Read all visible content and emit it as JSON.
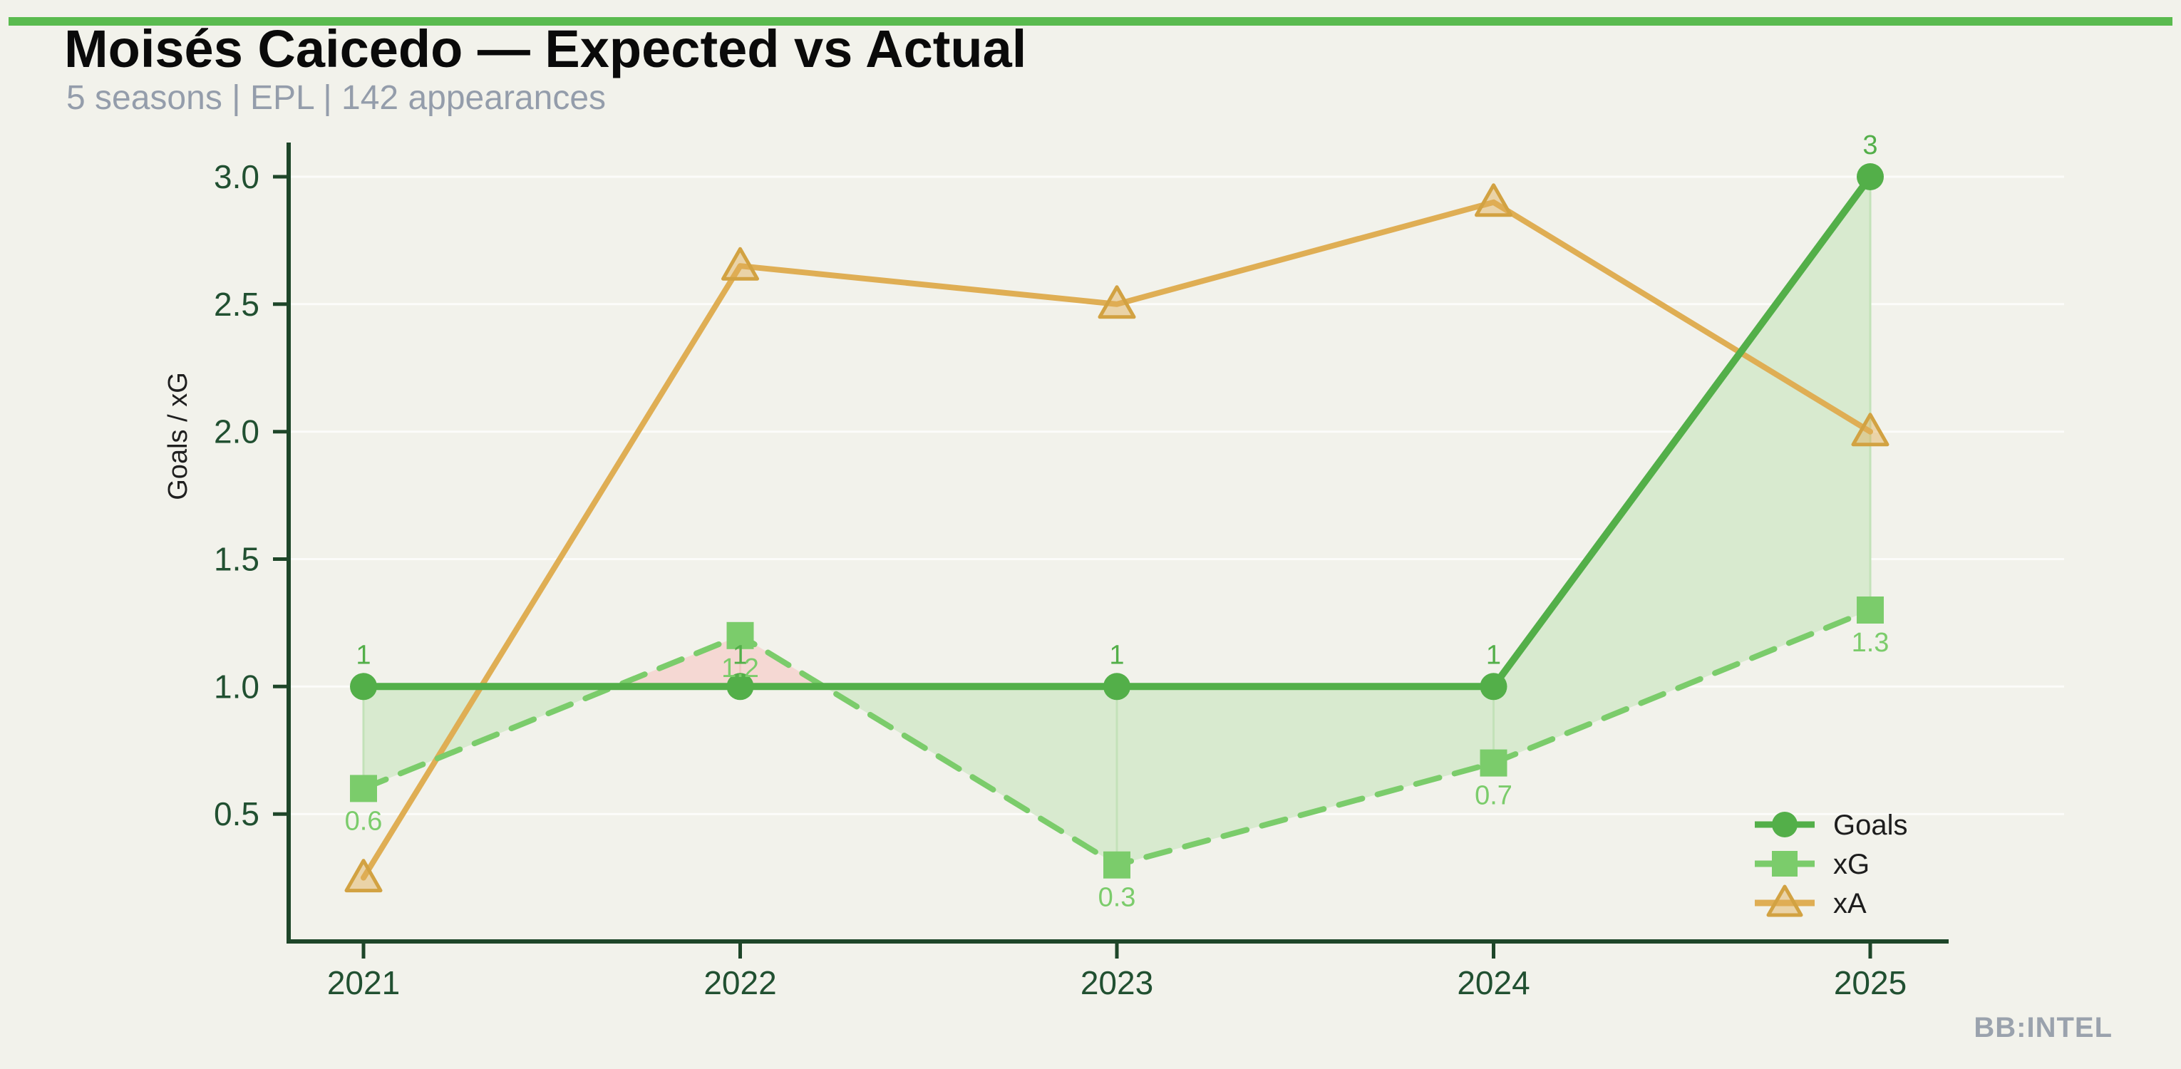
{
  "header": {
    "title": "Moisés Caicedo — Expected vs Actual",
    "subtitle": "5 seasons | EPL | 142 appearances"
  },
  "watermark": "BB:INTEL",
  "chart_data": {
    "type": "line",
    "title": "Moisés Caicedo — Expected vs Actual",
    "subtitle": "5 seasons | EPL | 142 appearances",
    "categories": [
      "2021",
      "2022",
      "2023",
      "2024",
      "2025"
    ],
    "series": [
      {
        "name": "Goals",
        "values": [
          1,
          1,
          1,
          1,
          3
        ],
        "data_labels": [
          "1",
          "1",
          "1",
          "1",
          "3"
        ],
        "color": "#53af49",
        "marker": "circle",
        "line_style": "solid"
      },
      {
        "name": "xG",
        "values": [
          0.6,
          1.2,
          0.3,
          0.7,
          1.3
        ],
        "data_labels": [
          "0.6",
          "1.2",
          "0.3",
          "0.7",
          "1.3"
        ],
        "color": "#7bcc6b",
        "marker": "square",
        "line_style": "dashed"
      },
      {
        "name": "xA",
        "values": [
          0.25,
          2.65,
          2.5,
          2.9,
          2.0
        ],
        "data_labels": [],
        "color": "#dfae54",
        "marker": "triangle",
        "line_style": "solid"
      }
    ],
    "ylabel": "Goals / xG",
    "xlabel": "",
    "yticks": [
      "0.5",
      "1.0",
      "1.5",
      "2.0",
      "2.5",
      "3.0"
    ],
    "ylim": [
      0,
      3.14
    ],
    "grid": true,
    "legend_position": "lower-right",
    "fill_between": {
      "series_pair": [
        "Goals",
        "xG"
      ],
      "overperform_color": "#d8eacf",
      "underperform_color": "#f5d8d3",
      "overperform_edge": "#c3e2b9",
      "underperform_edge": "#f0c9c3"
    },
    "axis_color": "#1e4629",
    "tick_label_color": "#215031",
    "legend_text_color": "#1d1d1d",
    "background_color": "#f2f2eb",
    "gridline_color": "rgba(255,255,255,0.75)",
    "accent_bar_color": "#5abb4f"
  }
}
